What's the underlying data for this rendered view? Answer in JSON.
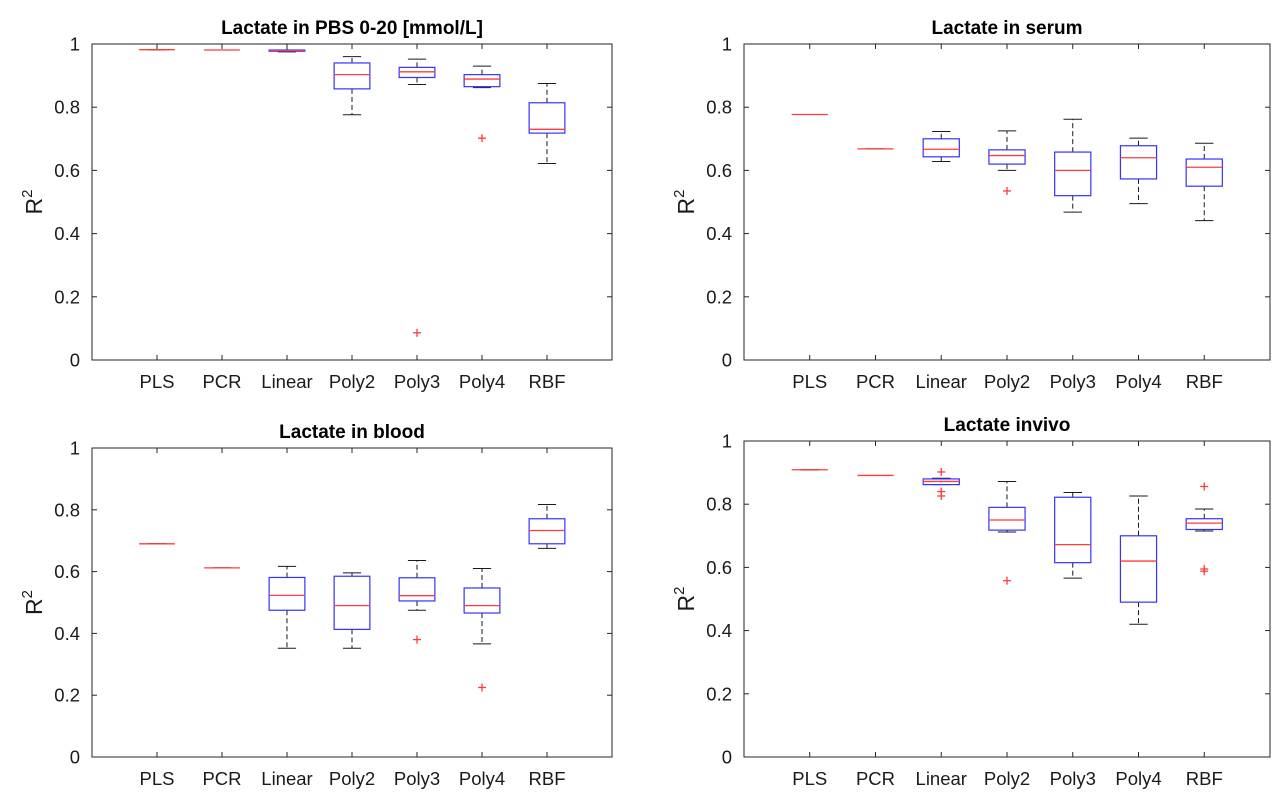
{
  "figure": {
    "colors": {
      "box": "#3333ff",
      "median": "#ff3b3b",
      "whisker": "#1a1a1a",
      "outlier": "#ff3b3b",
      "axis": "#262626"
    }
  },
  "chart_data": [
    {
      "type": "box",
      "title": "Lactate in PBS 0-20 [mmol/L]",
      "xlabel": "",
      "ylabel": "R",
      "ylabel_superscript": "2",
      "ylim": [
        0,
        1
      ],
      "yticks": [
        "0",
        "0.2",
        "0.4",
        "0.6",
        "0.8",
        "1"
      ],
      "categories": [
        "PLS",
        "PCR",
        "Linear",
        "Poly2",
        "Poly3",
        "Poly4",
        "RBF"
      ],
      "boxes": [
        {
          "min": 0.982,
          "q1": 0.982,
          "median": 0.982,
          "q3": 0.982,
          "max": 0.982,
          "outliers": []
        },
        {
          "min": 0.981,
          "q1": 0.981,
          "median": 0.981,
          "q3": 0.981,
          "max": 0.981,
          "outliers": []
        },
        {
          "min": 0.975,
          "q1": 0.977,
          "median": 0.979,
          "q3": 0.981,
          "max": 1.0,
          "outliers": []
        },
        {
          "min": 0.776,
          "q1": 0.858,
          "median": 0.903,
          "q3": 0.94,
          "max": 0.96,
          "outliers": []
        },
        {
          "min": 0.872,
          "q1": 0.894,
          "median": 0.912,
          "q3": 0.926,
          "max": 0.952,
          "outliers": [
            0.086
          ]
        },
        {
          "min": 0.862,
          "q1": 0.865,
          "median": 0.889,
          "q3": 0.903,
          "max": 0.93,
          "outliers": [
            0.702
          ]
        },
        {
          "min": 0.622,
          "q1": 0.718,
          "median": 0.73,
          "q3": 0.814,
          "max": 0.875,
          "outliers": []
        }
      ]
    },
    {
      "type": "box",
      "title": "Lactate in serum",
      "xlabel": "",
      "ylabel": "R",
      "ylabel_superscript": "2",
      "ylim": [
        0,
        1
      ],
      "yticks": [
        "0",
        "0.2",
        "0.4",
        "0.6",
        "0.8",
        "1"
      ],
      "categories": [
        "PLS",
        "PCR",
        "Linear",
        "Poly2",
        "Poly3",
        "Poly4",
        "RBF"
      ],
      "boxes": [
        {
          "min": 0.777,
          "q1": 0.777,
          "median": 0.777,
          "q3": 0.777,
          "max": 0.777,
          "outliers": []
        },
        {
          "min": 0.668,
          "q1": 0.668,
          "median": 0.668,
          "q3": 0.668,
          "max": 0.668,
          "outliers": []
        },
        {
          "min": 0.628,
          "q1": 0.643,
          "median": 0.667,
          "q3": 0.7,
          "max": 0.723,
          "outliers": []
        },
        {
          "min": 0.6,
          "q1": 0.62,
          "median": 0.647,
          "q3": 0.665,
          "max": 0.725,
          "outliers": [
            0.535
          ]
        },
        {
          "min": 0.468,
          "q1": 0.52,
          "median": 0.6,
          "q3": 0.658,
          "max": 0.762,
          "outliers": []
        },
        {
          "min": 0.495,
          "q1": 0.573,
          "median": 0.64,
          "q3": 0.678,
          "max": 0.702,
          "outliers": []
        },
        {
          "min": 0.441,
          "q1": 0.55,
          "median": 0.61,
          "q3": 0.636,
          "max": 0.686,
          "outliers": []
        }
      ]
    },
    {
      "type": "box",
      "title": "Lactate in blood",
      "xlabel": "",
      "ylabel": "R",
      "ylabel_superscript": "2",
      "ylim": [
        0,
        1
      ],
      "yticks": [
        "0",
        "0.2",
        "0.4",
        "0.6",
        "0.8",
        "1"
      ],
      "categories": [
        "PLS",
        "PCR",
        "Linear",
        "Poly2",
        "Poly3",
        "Poly4",
        "RBF"
      ],
      "boxes": [
        {
          "min": 0.69,
          "q1": 0.69,
          "median": 0.69,
          "q3": 0.69,
          "max": 0.69,
          "outliers": []
        },
        {
          "min": 0.612,
          "q1": 0.612,
          "median": 0.612,
          "q3": 0.612,
          "max": 0.612,
          "outliers": []
        },
        {
          "min": 0.352,
          "q1": 0.475,
          "median": 0.523,
          "q3": 0.581,
          "max": 0.617,
          "outliers": []
        },
        {
          "min": 0.352,
          "q1": 0.413,
          "median": 0.49,
          "q3": 0.585,
          "max": 0.596,
          "outliers": []
        },
        {
          "min": 0.475,
          "q1": 0.505,
          "median": 0.522,
          "q3": 0.58,
          "max": 0.636,
          "outliers": [
            0.38
          ]
        },
        {
          "min": 0.366,
          "q1": 0.466,
          "median": 0.49,
          "q3": 0.547,
          "max": 0.61,
          "outliers": [
            0.225
          ]
        },
        {
          "min": 0.675,
          "q1": 0.69,
          "median": 0.733,
          "q3": 0.771,
          "max": 0.817,
          "outliers": []
        }
      ]
    },
    {
      "type": "box",
      "title": "Lactate invivo",
      "xlabel": "",
      "ylabel": "R",
      "ylabel_superscript": "2",
      "ylim": [
        0,
        1
      ],
      "yticks": [
        "0",
        "0.2",
        "0.4",
        "0.6",
        "0.8",
        "1"
      ],
      "categories": [
        "PLS",
        "PCR",
        "Linear",
        "Poly2",
        "Poly3",
        "Poly4",
        "RBF"
      ],
      "boxes": [
        {
          "min": 0.909,
          "q1": 0.909,
          "median": 0.909,
          "q3": 0.909,
          "max": 0.909,
          "outliers": []
        },
        {
          "min": 0.891,
          "q1": 0.891,
          "median": 0.891,
          "q3": 0.891,
          "max": 0.891,
          "outliers": []
        },
        {
          "min": 0.862,
          "q1": 0.862,
          "median": 0.872,
          "q3": 0.88,
          "max": 0.882,
          "outliers": [
            0.902,
            0.84,
            0.826
          ]
        },
        {
          "min": 0.712,
          "q1": 0.718,
          "median": 0.75,
          "q3": 0.79,
          "max": 0.872,
          "outliers": [
            0.558
          ]
        },
        {
          "min": 0.566,
          "q1": 0.615,
          "median": 0.672,
          "q3": 0.822,
          "max": 0.837,
          "outliers": []
        },
        {
          "min": 0.42,
          "q1": 0.49,
          "median": 0.62,
          "q3": 0.7,
          "max": 0.826,
          "outliers": []
        },
        {
          "min": 0.715,
          "q1": 0.72,
          "median": 0.74,
          "q3": 0.754,
          "max": 0.785,
          "outliers": [
            0.856,
            0.595,
            0.588
          ]
        }
      ]
    }
  ]
}
